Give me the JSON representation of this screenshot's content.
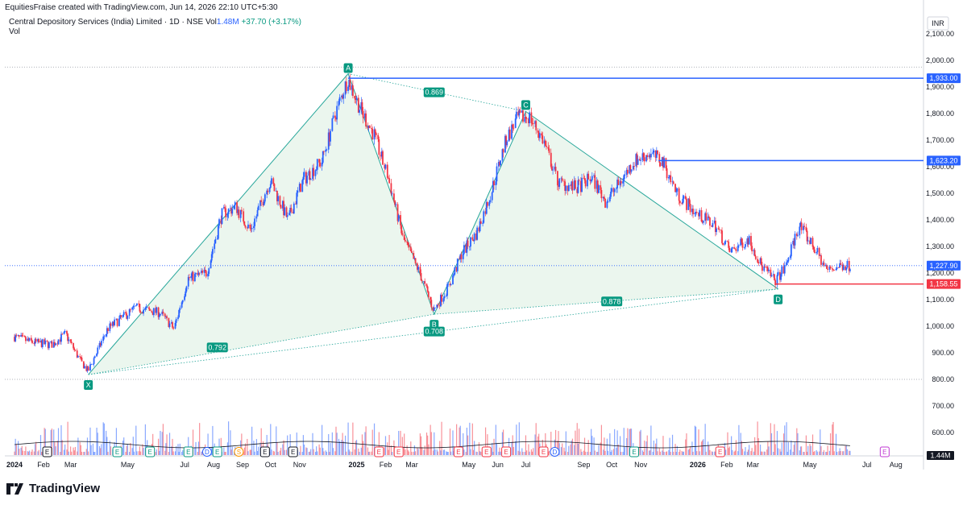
{
  "header": {
    "attribution": "EquitiesFraise created with TradingView.com, Jun 14, 2026 22:10 UTC+5:30"
  },
  "symbol": {
    "title": "Central Depository Services (India) Limited · 1D · NSE",
    "vol_prefix": "Vol",
    "vol_value": "1.48M",
    "change": "+37.70 (+3.17%)",
    "vol_label": "Vol"
  },
  "brand": {
    "name": "TradingView"
  },
  "colors": {
    "up": "#2962ff",
    "down": "#f23645",
    "pattern_fill": "#e9f5ec",
    "pattern_line": "#26a69a",
    "label_bg": "#089981",
    "blue_level": "#2962ff",
    "red_level": "#f23645"
  },
  "chart_data": {
    "type": "candlestick",
    "currency": "INR",
    "y_axis_ticks": [
      "2,100.00",
      "2,000.00",
      "1,900.00",
      "1,800.00",
      "1,700.00",
      "1,600.00",
      "1,500.00",
      "1,400.00",
      "1,300.00",
      "1,200.00",
      "1,100.00",
      "1,000.00",
      "900.00",
      "800.00",
      "700.00",
      "600.00"
    ],
    "y_tick_values": [
      2100,
      2000,
      1900,
      1800,
      1700,
      1600,
      1500,
      1400,
      1300,
      1200,
      1100,
      1000,
      900,
      800,
      700,
      600
    ],
    "ylim": [
      560,
      2130
    ],
    "x_axis_labels": [
      {
        "label": "2024",
        "date": "2024-01-01"
      },
      {
        "label": "Feb",
        "date": "2024-02-01"
      },
      {
        "label": "Mar",
        "date": "2024-03-01"
      },
      {
        "label": "May",
        "date": "2024-05-01"
      },
      {
        "label": "Jul",
        "date": "2024-07-01"
      },
      {
        "label": "Aug",
        "date": "2024-08-01"
      },
      {
        "label": "Sep",
        "date": "2024-09-01"
      },
      {
        "label": "Oct",
        "date": "2024-10-01"
      },
      {
        "label": "Nov",
        "date": "2024-11-01"
      },
      {
        "label": "2025",
        "date": "2025-01-01"
      },
      {
        "label": "Feb",
        "date": "2025-02-01"
      },
      {
        "label": "Mar",
        "date": "2025-03-01"
      },
      {
        "label": "May",
        "date": "2025-05-01"
      },
      {
        "label": "Jun",
        "date": "2025-06-01"
      },
      {
        "label": "Jul",
        "date": "2025-07-01"
      },
      {
        "label": "Sep",
        "date": "2025-09-01"
      },
      {
        "label": "Oct",
        "date": "2025-10-01"
      },
      {
        "label": "Nov",
        "date": "2025-11-01"
      },
      {
        "label": "2026",
        "date": "2026-01-01"
      },
      {
        "label": "Feb",
        "date": "2026-02-01"
      },
      {
        "label": "Mar",
        "date": "2026-03-01"
      },
      {
        "label": "May",
        "date": "2026-05-01"
      },
      {
        "label": "Jul",
        "date": "2026-07-01"
      },
      {
        "label": "Aug",
        "date": "2026-08-01"
      }
    ],
    "price_path": [
      [
        "2024-01-01",
        960
      ],
      [
        "2024-01-20",
        940
      ],
      [
        "2024-02-10",
        930
      ],
      [
        "2024-02-25",
        970
      ],
      [
        "2024-03-10",
        880
      ],
      [
        "2024-03-20",
        830
      ],
      [
        "2024-04-10",
        990
      ],
      [
        "2024-05-10",
        1070
      ],
      [
        "2024-06-05",
        1050
      ],
      [
        "2024-06-20",
        990
      ],
      [
        "2024-07-05",
        1180
      ],
      [
        "2024-07-25",
        1200
      ],
      [
        "2024-08-10",
        1420
      ],
      [
        "2024-08-25",
        1450
      ],
      [
        "2024-09-10",
        1360
      ],
      [
        "2024-10-01",
        1550
      ],
      [
        "2024-10-20",
        1400
      ],
      [
        "2024-11-05",
        1550
      ],
      [
        "2024-11-25",
        1620
      ],
      [
        "2024-12-10",
        1800
      ],
      [
        "2024-12-23",
        1933
      ],
      [
        "2025-01-05",
        1820
      ],
      [
        "2025-01-20",
        1720
      ],
      [
        "2025-02-05",
        1550
      ],
      [
        "2025-02-20",
        1330
      ],
      [
        "2025-03-10",
        1200
      ],
      [
        "2025-03-25",
        1060
      ],
      [
        "2025-04-10",
        1150
      ],
      [
        "2025-04-25",
        1280
      ],
      [
        "2025-05-10",
        1350
      ],
      [
        "2025-05-25",
        1500
      ],
      [
        "2025-06-10",
        1700
      ],
      [
        "2025-06-22",
        1780
      ],
      [
        "2025-07-05",
        1790
      ],
      [
        "2025-07-20",
        1700
      ],
      [
        "2025-08-05",
        1540
      ],
      [
        "2025-08-25",
        1520
      ],
      [
        "2025-09-10",
        1560
      ],
      [
        "2025-09-25",
        1470
      ],
      [
        "2025-10-10",
        1540
      ],
      [
        "2025-10-25",
        1620
      ],
      [
        "2025-11-10",
        1650
      ],
      [
        "2025-11-25",
        1620
      ],
      [
        "2025-12-10",
        1500
      ],
      [
        "2026-01-01",
        1420
      ],
      [
        "2026-01-20",
        1380
      ],
      [
        "2026-02-05",
        1280
      ],
      [
        "2026-02-25",
        1330
      ],
      [
        "2026-03-10",
        1230
      ],
      [
        "2026-03-25",
        1170
      ],
      [
        "2026-04-05",
        1220
      ],
      [
        "2026-04-20",
        1380
      ],
      [
        "2026-05-05",
        1300
      ],
      [
        "2026-05-20",
        1210
      ],
      [
        "2026-06-05",
        1230
      ],
      [
        "2026-06-14",
        1227.9
      ]
    ],
    "price_levels": [
      {
        "value": 1933.0,
        "label": "1,933.00",
        "color": "#2962ff",
        "start": "2024-12-23"
      },
      {
        "value": 1623.2,
        "label": "1,623.20",
        "color": "#2962ff",
        "start": "2025-11-20"
      },
      {
        "value": 1227.9,
        "label": "1,227.90",
        "color": "#2962ff",
        "start": "2024-01-01",
        "dotted": true
      },
      {
        "value": 1158.55,
        "label": "1,158.55",
        "color": "#f23645",
        "start": "2026-03-25"
      }
    ],
    "dotted_lines": [
      {
        "value": 1975
      },
      {
        "value": 800
      }
    ],
    "pattern": {
      "points": [
        {
          "name": "X",
          "date": "2024-03-20",
          "value": 818
        },
        {
          "name": "A",
          "date": "2024-12-23",
          "value": 1950
        },
        {
          "name": "B",
          "date": "2025-03-25",
          "value": 1045
        },
        {
          "name": "C",
          "date": "2025-07-01",
          "value": 1808
        },
        {
          "name": "D",
          "date": "2026-03-28",
          "value": 1140
        }
      ],
      "ratios": [
        {
          "label": "0.869",
          "date": "2025-03-25",
          "value": 1880
        },
        {
          "label": "0.792",
          "date": "2024-08-05",
          "value": 920
        },
        {
          "label": "0.708",
          "date": "2025-03-25",
          "value": 980
        },
        {
          "label": "0.878",
          "date": "2025-10-01",
          "value": 1093
        }
      ]
    },
    "volume_max_label": "1.44M",
    "event_markers": [
      {
        "icon": "E",
        "date": "2024-02-05",
        "color": "#131722"
      },
      {
        "icon": "E",
        "date": "2024-04-20",
        "color": "#089981"
      },
      {
        "icon": "E",
        "date": "2024-05-25",
        "color": "#089981"
      },
      {
        "icon": "E",
        "date": "2024-07-05",
        "color": "#089981"
      },
      {
        "icon": "D",
        "date": "2024-07-25",
        "color": "#2962ff"
      },
      {
        "icon": "E",
        "date": "2024-08-05",
        "color": "#089981"
      },
      {
        "icon": "S",
        "date": "2024-08-28",
        "color": "#ff9800"
      },
      {
        "icon": "E",
        "date": "2024-09-25",
        "color": "#131722"
      },
      {
        "icon": "E",
        "date": "2024-10-25",
        "color": "#131722"
      },
      {
        "icon": "E",
        "date": "2025-01-25",
        "color": "#f23645"
      },
      {
        "icon": "E",
        "date": "2025-02-15",
        "color": "#f23645"
      },
      {
        "icon": "E",
        "date": "2025-04-20",
        "color": "#f23645"
      },
      {
        "icon": "E",
        "date": "2025-05-20",
        "color": "#f23645"
      },
      {
        "icon": "E",
        "date": "2025-06-10",
        "color": "#f23645"
      },
      {
        "icon": "E",
        "date": "2025-07-20",
        "color": "#f23645"
      },
      {
        "icon": "D",
        "date": "2025-08-01",
        "color": "#2962ff"
      },
      {
        "icon": "E",
        "date": "2025-10-25",
        "color": "#089981"
      },
      {
        "icon": "E",
        "date": "2026-01-25",
        "color": "#f23645"
      },
      {
        "icon": "E",
        "date": "2026-07-20",
        "color": "#c039d3"
      }
    ]
  }
}
